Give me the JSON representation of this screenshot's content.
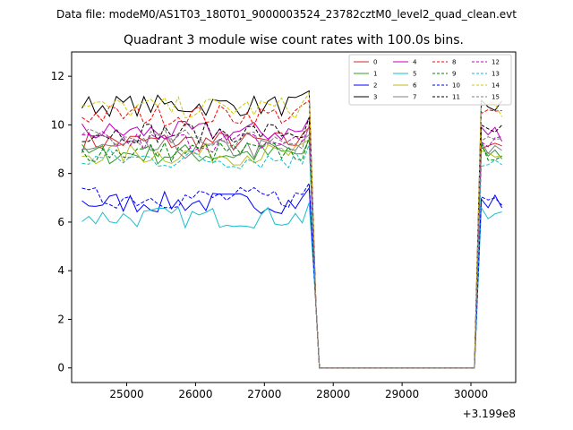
{
  "page": {
    "data_file_label": "Data file: modeM0/AS1T03_180T01_9000003524_23782cztM0_level2_quad_clean.evt"
  },
  "chart_data": {
    "type": "line",
    "title": "Quadrant 3 module wise count rates with 100.0s bins.",
    "xlabel": "",
    "ylabel": "",
    "x_offset_label": "+3.199e8",
    "xlim": [
      24200,
      30650
    ],
    "ylim": [
      -0.6,
      13.0
    ],
    "x_ticks": [
      25000,
      26000,
      27000,
      28000,
      29000,
      30000
    ],
    "x_tick_labels": [
      "25000",
      "26000",
      "27000",
      "28000",
      "29000",
      "30000"
    ],
    "y_ticks": [
      0,
      2,
      4,
      6,
      8,
      10,
      12
    ],
    "y_tick_labels": [
      "0",
      "2",
      "4",
      "6",
      "8",
      "10",
      "12"
    ],
    "grid": false,
    "legend_position": "top-right",
    "legend_columns": 4,
    "series": [
      {
        "name": "0",
        "color": "#d62728",
        "style": "solid",
        "level": 9.3
      },
      {
        "name": "1",
        "color": "#2ca02c",
        "style": "solid",
        "level": 8.8
      },
      {
        "name": "2",
        "color": "#0000ff",
        "style": "solid",
        "level": 6.8
      },
      {
        "name": "3",
        "color": "#000000",
        "style": "solid",
        "level": 10.8
      },
      {
        "name": "4",
        "color": "#bf00bf",
        "style": "solid",
        "level": 9.7
      },
      {
        "name": "5",
        "color": "#17becf",
        "style": "solid",
        "level": 6.2
      },
      {
        "name": "6",
        "color": "#bcbd22",
        "style": "solid",
        "level": 8.8
      },
      {
        "name": "7",
        "color": "#7f7f7f",
        "style": "solid",
        "level": 9.0
      },
      {
        "name": "8",
        "color": "#ff0000",
        "style": "dashed",
        "level": 10.4
      },
      {
        "name": "9",
        "color": "#008000",
        "style": "dashed",
        "level": 8.9
      },
      {
        "name": "10",
        "color": "#0000ff",
        "style": "dashed",
        "level": 7.0
      },
      {
        "name": "11",
        "color": "#000000",
        "style": "dashed",
        "level": 9.7
      },
      {
        "name": "12",
        "color": "#bf00bf",
        "style": "dashed",
        "level": 9.3
      },
      {
        "name": "13",
        "color": "#17becf",
        "style": "dashed",
        "level": 8.6
      },
      {
        "name": "14",
        "color": "#cccc00",
        "style": "dashed",
        "level": 10.7
      },
      {
        "name": "15",
        "color": "#7f7f7f",
        "style": "dashed",
        "level": 9.4
      }
    ],
    "x_start": 24350,
    "x_step": 100,
    "bins_before_gap": 34,
    "gap_x": [
      27800,
      30050
    ],
    "bins_after_gap": 4,
    "gap_value": 0
  }
}
